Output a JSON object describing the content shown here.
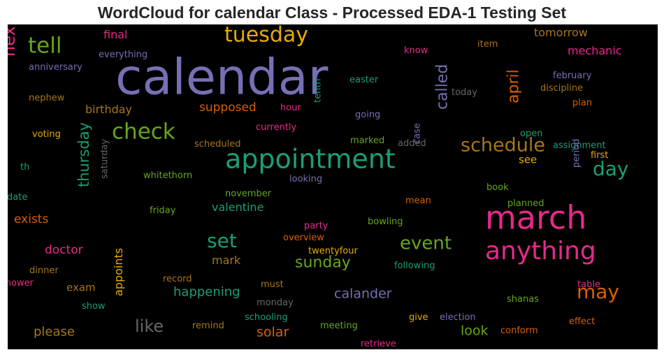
{
  "chart_data": {
    "type": "wordcloud",
    "title": "WordCloud for calendar Class - Processed EDA-1 Testing Set",
    "background": "#000000",
    "palette": "Dark2",
    "words": [
      {
        "text": "calendar",
        "color": "#7570b3"
      },
      {
        "text": "march",
        "color": "#e7298a"
      },
      {
        "text": "appointment",
        "color": "#1b9e77"
      },
      {
        "text": "anything",
        "color": "#e7298a"
      },
      {
        "text": "tuesday",
        "color": "#e6ab02"
      },
      {
        "text": "check",
        "color": "#66a61e"
      },
      {
        "text": "tell",
        "color": "#66a61e"
      },
      {
        "text": "schedule",
        "color": "#a6761d"
      },
      {
        "text": "day",
        "color": "#1b9e77"
      },
      {
        "text": "set",
        "color": "#1b9e77"
      },
      {
        "text": "event",
        "color": "#66a61e"
      },
      {
        "text": "next",
        "color": "#e7298a"
      },
      {
        "text": "may",
        "color": "#d95f02"
      },
      {
        "text": "thursday",
        "color": "#1b9e77"
      },
      {
        "text": "called",
        "color": "#7570b3"
      },
      {
        "text": "april",
        "color": "#d95f02"
      },
      {
        "text": "sunday",
        "color": "#66a61e"
      },
      {
        "text": "like",
        "color": "#666666"
      },
      {
        "text": "calander",
        "color": "#7570b3"
      },
      {
        "text": "solar",
        "color": "#d95f02"
      },
      {
        "text": "look",
        "color": "#66a61e"
      },
      {
        "text": "please",
        "color": "#a6761d"
      },
      {
        "text": "happening",
        "color": "#1b9e77"
      },
      {
        "text": "doctor",
        "color": "#e7298a"
      },
      {
        "text": "valentine",
        "color": "#1b9e77"
      },
      {
        "text": "exists",
        "color": "#d95f02"
      },
      {
        "text": "mark",
        "color": "#a6761d"
      },
      {
        "text": "supposed",
        "color": "#d95f02"
      },
      {
        "text": "birthday",
        "color": "#a6761d"
      },
      {
        "text": "mechanic",
        "color": "#e7298a"
      },
      {
        "text": "tomorrow",
        "color": "#a6761d"
      },
      {
        "text": "exam",
        "color": "#a6761d"
      },
      {
        "text": "appoints",
        "color": "#e6ab02"
      },
      {
        "text": "final",
        "color": "#e7298a"
      },
      {
        "text": "saturday",
        "color": "#666666"
      },
      {
        "text": "see",
        "color": "#e6ab02"
      },
      {
        "text": "everything",
        "color": "#7570b3"
      },
      {
        "text": "anniversary",
        "color": "#7570b3"
      },
      {
        "text": "know",
        "color": "#e7298a"
      },
      {
        "text": "item",
        "color": "#a6761d"
      },
      {
        "text": "easter",
        "color": "#1b9e77"
      },
      {
        "text": "february",
        "color": "#7570b3"
      },
      {
        "text": "discipline",
        "color": "#a6761d"
      },
      {
        "text": "today",
        "color": "#666666"
      },
      {
        "text": "plan",
        "color": "#d95f02"
      },
      {
        "text": "nephew",
        "color": "#a6761d"
      },
      {
        "text": "hour",
        "color": "#e7298a"
      },
      {
        "text": "tenth",
        "color": "#1b9e77"
      },
      {
        "text": "going",
        "color": "#7570b3"
      },
      {
        "text": "currently",
        "color": "#e7298a"
      },
      {
        "text": "voting",
        "color": "#e6ab02"
      },
      {
        "text": "scheduled",
        "color": "#a6761d"
      },
      {
        "text": "marked",
        "color": "#66a61e"
      },
      {
        "text": "added",
        "color": "#666666"
      },
      {
        "text": "open",
        "color": "#1b9e77"
      },
      {
        "text": "assignment",
        "color": "#1b9e77"
      },
      {
        "text": "first",
        "color": "#e6ab02"
      },
      {
        "text": "case",
        "color": "#7570b3"
      },
      {
        "text": "th",
        "color": "#1b9e77"
      },
      {
        "text": "whitethorn",
        "color": "#66a61e"
      },
      {
        "text": "looking",
        "color": "#7570b3"
      },
      {
        "text": "period",
        "color": "#7570b3"
      },
      {
        "text": "date",
        "color": "#1b9e77"
      },
      {
        "text": "november",
        "color": "#66a61e"
      },
      {
        "text": "book",
        "color": "#66a61e"
      },
      {
        "text": "mean",
        "color": "#d95f02"
      },
      {
        "text": "planned",
        "color": "#66a61e"
      },
      {
        "text": "friday",
        "color": "#66a61e"
      },
      {
        "text": "party",
        "color": "#e7298a"
      },
      {
        "text": "bowling",
        "color": "#66a61e"
      },
      {
        "text": "overview",
        "color": "#d95f02"
      },
      {
        "text": "twentyfour",
        "color": "#e6ab02"
      },
      {
        "text": "dinner",
        "color": "#a6761d"
      },
      {
        "text": "following",
        "color": "#1b9e77"
      },
      {
        "text": "record",
        "color": "#a6761d"
      },
      {
        "text": "shower",
        "color": "#e7298a"
      },
      {
        "text": "must",
        "color": "#a6761d"
      },
      {
        "text": "table",
        "color": "#e7298a"
      },
      {
        "text": "show",
        "color": "#1b9e77"
      },
      {
        "text": "monday",
        "color": "#666666"
      },
      {
        "text": "shanas",
        "color": "#66a61e"
      },
      {
        "text": "schooling",
        "color": "#1b9e77"
      },
      {
        "text": "give",
        "color": "#e6ab02"
      },
      {
        "text": "election",
        "color": "#7570b3"
      },
      {
        "text": "remind",
        "color": "#a6761d"
      },
      {
        "text": "meeting",
        "color": "#66a61e"
      },
      {
        "text": "effect",
        "color": "#d95f02"
      },
      {
        "text": "conform",
        "color": "#d95f02"
      },
      {
        "text": "retrieve",
        "color": "#e7298a"
      }
    ]
  }
}
